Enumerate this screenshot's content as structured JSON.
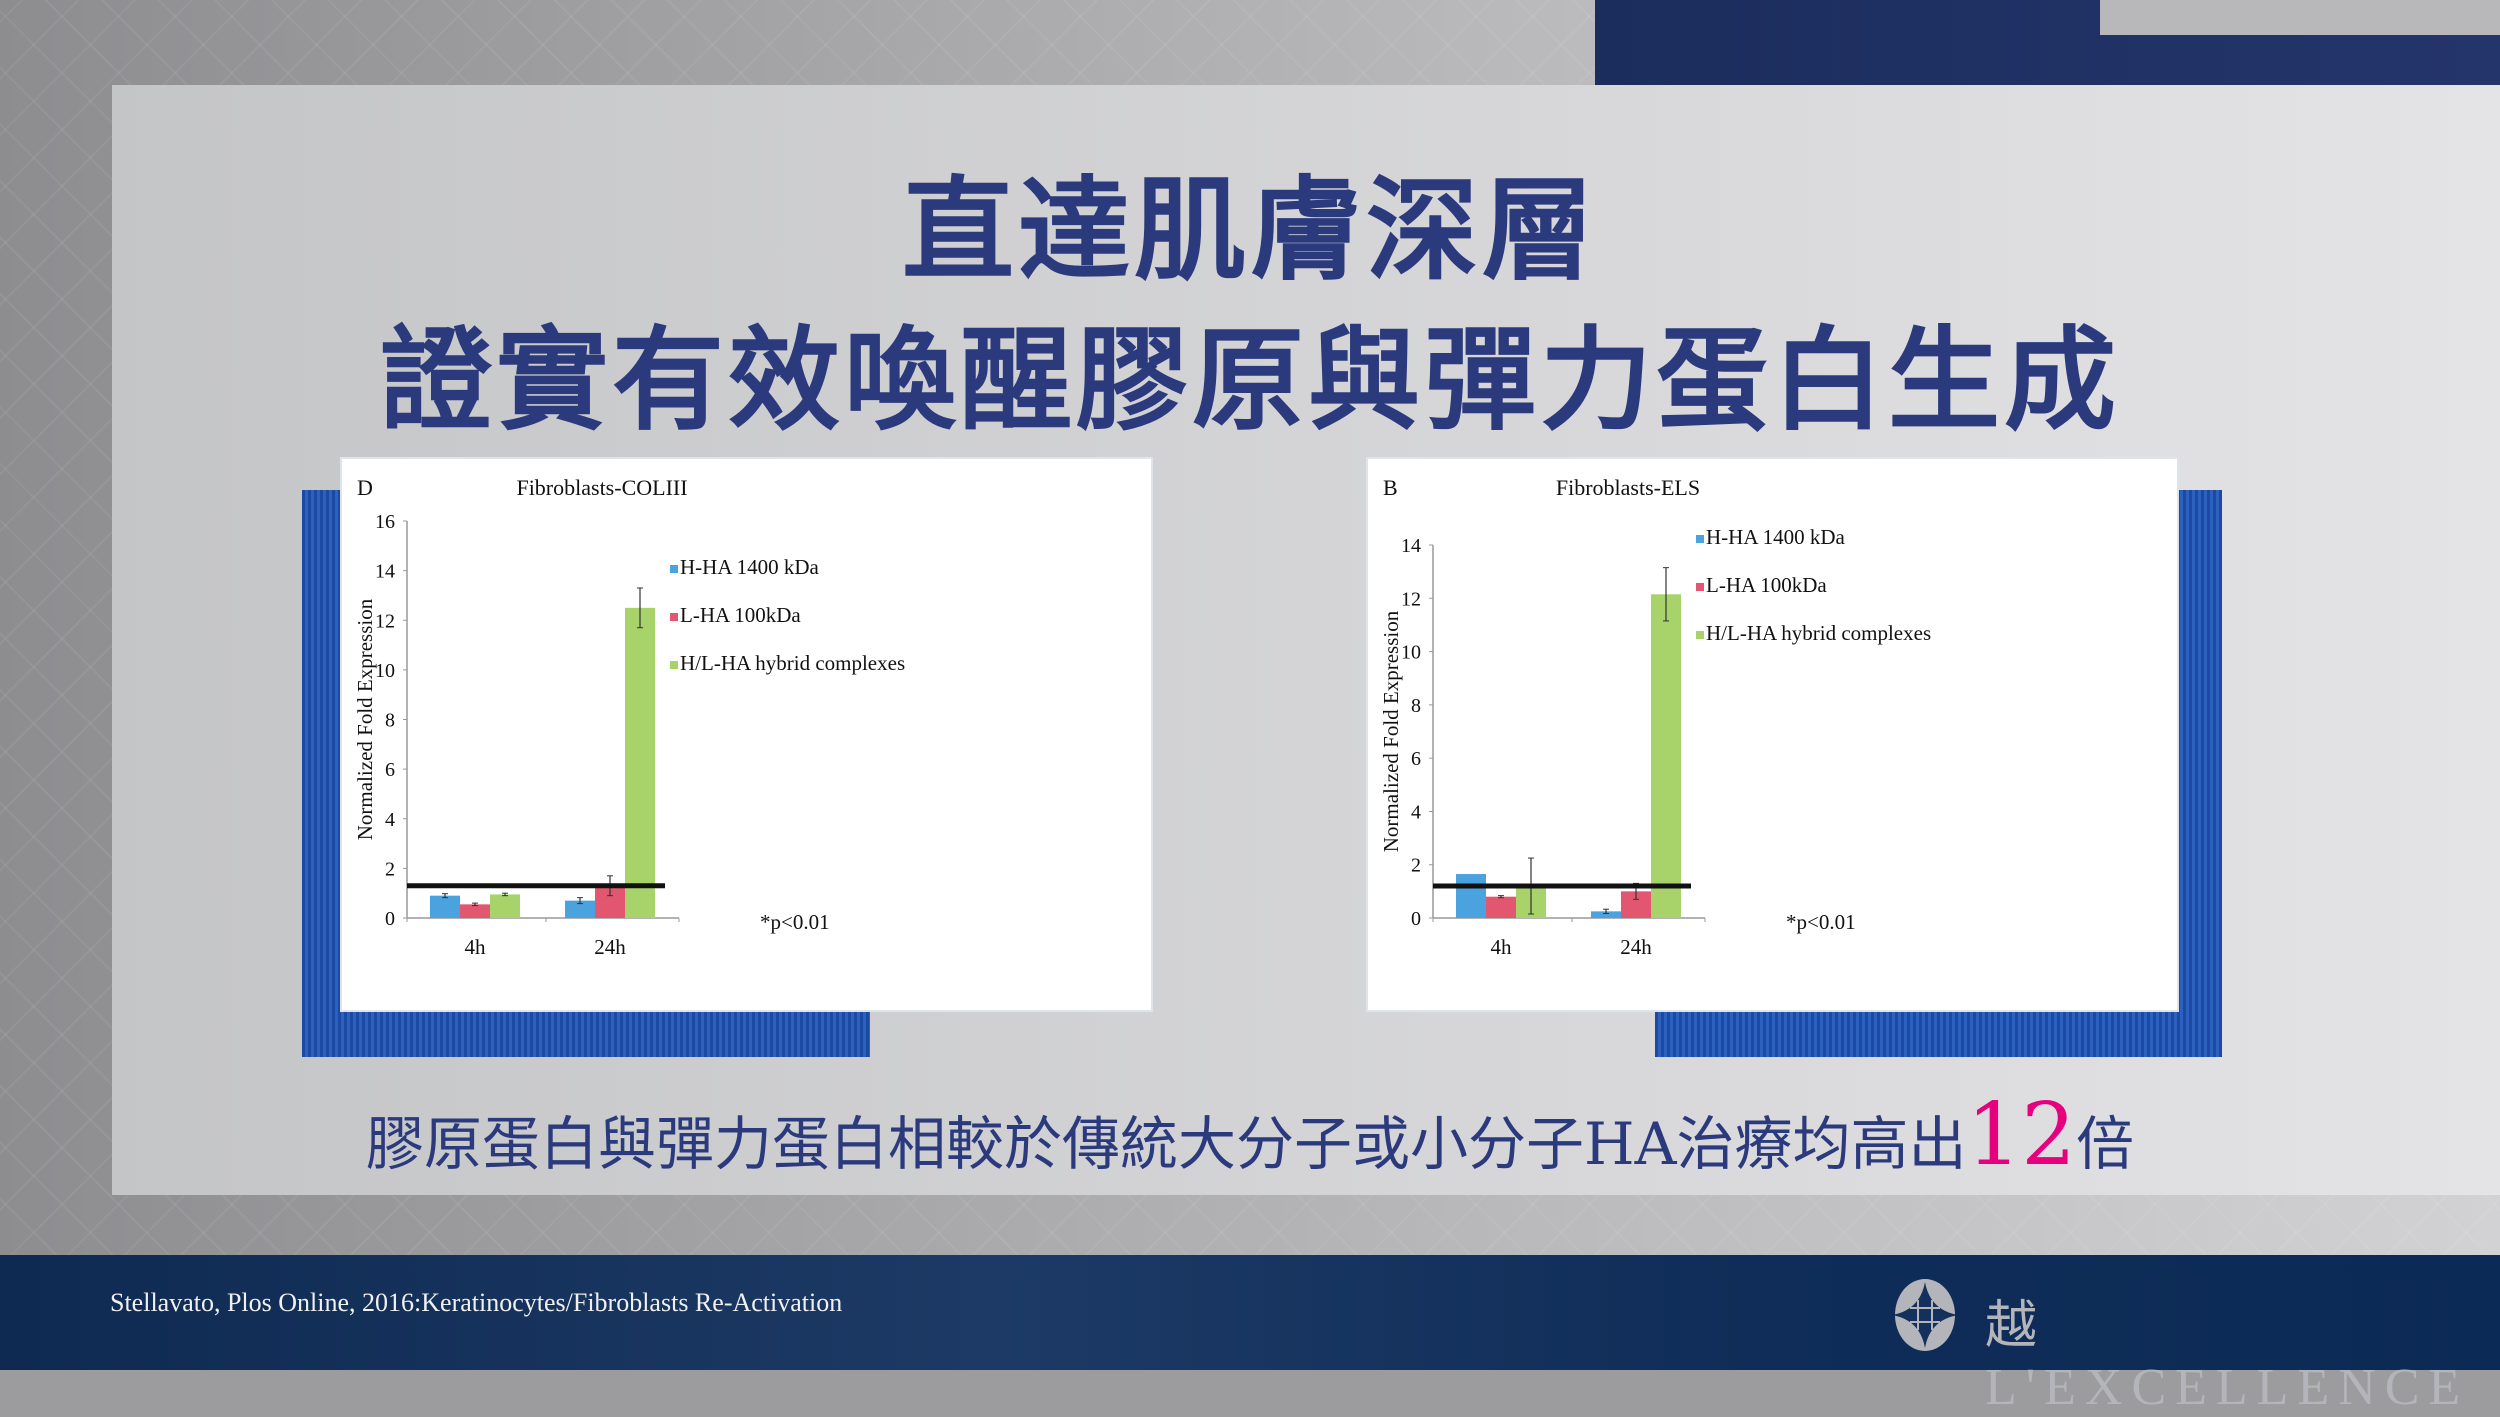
{
  "title": {
    "line1": "直達肌膚深層",
    "line2": "證實有效喚醒膠原與彈力蛋白生成"
  },
  "subtitle": {
    "before": "膠原蛋白與彈力蛋白相較於傳統大分子或小分子HA治療均高出",
    "highlight": "12",
    "after": "倍"
  },
  "footer": {
    "citation": "Stellavato, Plos Online, 2016:Keratinocytes/Fibroblasts Re-Activation",
    "brand_char": "越",
    "brand_name": "L'EXCELLENCE"
  },
  "colors": {
    "title": "#2b3a7c",
    "highlight": "#e6007e",
    "H-HA": "#4aa3df",
    "L-HA": "#e3566f",
    "hybrid": "#a8d26a",
    "footer": "#0e2a52"
  },
  "chart_data": [
    {
      "type": "bar",
      "panel_label": "D",
      "title": "Fibroblasts-COLIII",
      "ylabel": "Normalized Fold Expression",
      "xlabel": "",
      "categories": [
        "4h",
        "24h"
      ],
      "ylim": [
        0,
        16
      ],
      "yticks": [
        0,
        2,
        4,
        6,
        8,
        10,
        12,
        14,
        16
      ],
      "grid": false,
      "legend": "top-right",
      "reference_line": 1.3,
      "annotation": "*p<0.01",
      "series": [
        {
          "name": "H-HA 1400 kDa",
          "color": "#4aa3df",
          "values": [
            0.9,
            0.7
          ],
          "errors": [
            0.08,
            0.12
          ]
        },
        {
          "name": "L-HA 100kDa",
          "color": "#e3566f",
          "values": [
            0.55,
            1.3
          ],
          "errors": [
            0.05,
            0.4
          ]
        },
        {
          "name": "H/L-HA  hybrid complexes",
          "color": "#a8d26a",
          "values": [
            0.95,
            12.5
          ],
          "errors": [
            0.05,
            0.8
          ]
        }
      ]
    },
    {
      "type": "bar",
      "panel_label": "B",
      "title": "Fibroblasts-ELS",
      "ylabel": "Normalized Fold Expression",
      "xlabel": "",
      "categories": [
        "4h",
        "24h"
      ],
      "ylim": [
        0,
        14
      ],
      "yticks": [
        0,
        2,
        4,
        6,
        8,
        10,
        12,
        14
      ],
      "grid": false,
      "legend": "top-right",
      "reference_line": 1.2,
      "annotation": "*p<0.01",
      "series": [
        {
          "name": "H-HA 1400 kDa",
          "color": "#4aa3df",
          "values": [
            1.65,
            0.25
          ],
          "errors": [
            0,
            0.08
          ]
        },
        {
          "name": "L-HA 100kDa",
          "color": "#e3566f",
          "values": [
            0.8,
            1.0
          ],
          "errors": [
            0.04,
            0.3
          ]
        },
        {
          "name": "H/L-HA  hybrid complexes",
          "color": "#a8d26a",
          "values": [
            1.2,
            12.15
          ],
          "errors": [
            1.05,
            1.0
          ]
        }
      ]
    }
  ]
}
